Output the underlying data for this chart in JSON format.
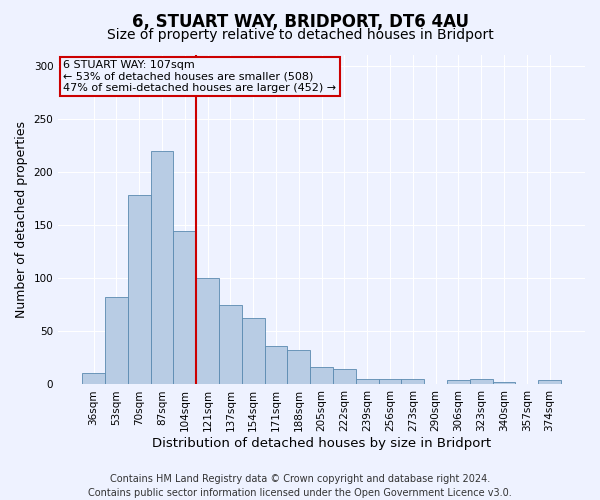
{
  "title1": "6, STUART WAY, BRIDPORT, DT6 4AU",
  "title2": "Size of property relative to detached houses in Bridport",
  "xlabel": "Distribution of detached houses by size in Bridport",
  "ylabel": "Number of detached properties",
  "categories": [
    "36sqm",
    "53sqm",
    "70sqm",
    "87sqm",
    "104sqm",
    "121sqm",
    "137sqm",
    "154sqm",
    "171sqm",
    "188sqm",
    "205sqm",
    "222sqm",
    "239sqm",
    "256sqm",
    "273sqm",
    "290sqm",
    "306sqm",
    "323sqm",
    "340sqm",
    "357sqm",
    "374sqm"
  ],
  "values": [
    11,
    82,
    178,
    220,
    144,
    100,
    75,
    63,
    36,
    32,
    16,
    15,
    5,
    5,
    5,
    0,
    4,
    5,
    2,
    0,
    4
  ],
  "bar_color": "#b8cce4",
  "bar_edge_color": "#5a8ab0",
  "bg_color": "#eef2ff",
  "grid_color": "#ffffff",
  "annotation_text_line1": "6 STUART WAY: 107sqm",
  "annotation_text_line2": "← 53% of detached houses are smaller (508)",
  "annotation_text_line3": "47% of semi-detached houses are larger (452) →",
  "vline_color": "#cc0000",
  "annotation_box_edge_color": "#cc0000",
  "vline_x_index": 4,
  "ylim": [
    0,
    310
  ],
  "yticks": [
    0,
    50,
    100,
    150,
    200,
    250,
    300
  ],
  "footer1": "Contains HM Land Registry data © Crown copyright and database right 2024.",
  "footer2": "Contains public sector information licensed under the Open Government Licence v3.0.",
  "title_fontsize": 12,
  "subtitle_fontsize": 10,
  "xlabel_fontsize": 9.5,
  "ylabel_fontsize": 9,
  "footer_fontsize": 7,
  "tick_fontsize": 7.5,
  "annot_fontsize": 8
}
